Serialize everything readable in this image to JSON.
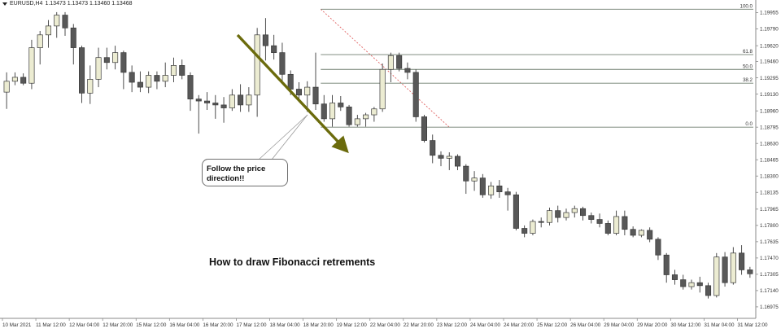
{
  "header": {
    "symbol": "EURUSD,H4",
    "ohlc": "1.13473 1.13473 1.13460 1.13468"
  },
  "annotation": {
    "callout_line1": "Follow the price",
    "callout_line2": "direction!!",
    "title": "How to draw Fibonacci retrements"
  },
  "colors": {
    "bull_candle": "#ececd2",
    "bear_candle": "#585858",
    "arrow": "#6b6b0c",
    "fib_line": "#6f7d6f",
    "fib_diagonal": "#e06060"
  },
  "chart_data": {
    "type": "candlestick",
    "symbol": "EURUSD",
    "timeframe": "H4",
    "ylim": [
      1.169,
      1.2005
    ],
    "y_ticks": [
      "1.19955",
      "1.19790",
      "1.19620",
      "1.19460",
      "1.19295",
      "1.19130",
      "1.18960",
      "1.18795",
      "1.18630",
      "1.18465",
      "1.18300",
      "1.18135",
      "1.17965",
      "1.17800",
      "1.17635",
      "1.17470",
      "1.17305",
      "1.17140",
      "1.16975"
    ],
    "x_ticks": [
      "10 Mar 2021",
      "11 Mar 12:00",
      "12 Mar 04:00",
      "12 Mar 20:00",
      "15 Mar 12:00",
      "16 Mar 04:00",
      "16 Mar 20:00",
      "17 Mar 12:00",
      "18 Mar 04:00",
      "18 Mar 20:00",
      "19 Mar 12:00",
      "22 Mar 04:00",
      "22 Mar 20:00",
      "23 Mar 12:00",
      "24 Mar 04:00",
      "24 Mar 20:00",
      "25 Mar 12:00",
      "26 Mar 04:00",
      "29 Mar 04:00",
      "29 Mar 20:00",
      "30 Mar 12:00",
      "31 Mar 04:00",
      "31 Mar 12:00"
    ],
    "fibonacci": {
      "high": 1.1999,
      "low": 1.18795,
      "levels": [
        {
          "label": "100.0",
          "price": 1.1999
        },
        {
          "label": "61.8",
          "price": 1.1953
        },
        {
          "label": "50.0",
          "price": 1.1938
        },
        {
          "label": "38.2",
          "price": 1.1924
        },
        {
          "label": "0.0",
          "price": 1.18795
        }
      ]
    },
    "candles": [
      [
        1.1915,
        1.1935,
        1.1898,
        1.1926
      ],
      [
        1.1926,
        1.1935,
        1.1922,
        1.193
      ],
      [
        1.193,
        1.1934,
        1.1922,
        1.1924
      ],
      [
        1.1924,
        1.1968,
        1.1918,
        1.196
      ],
      [
        1.196,
        1.1977,
        1.1943,
        1.1973
      ],
      [
        1.1973,
        1.1988,
        1.196,
        1.1982
      ],
      [
        1.1982,
        1.1996,
        1.197,
        1.1993
      ],
      [
        1.1993,
        1.1996,
        1.1972,
        1.198
      ],
      [
        1.198,
        1.1984,
        1.1943,
        1.196
      ],
      [
        1.196,
        1.1962,
        1.1904,
        1.1914
      ],
      [
        1.1914,
        1.1942,
        1.1903,
        1.1928
      ],
      [
        1.1928,
        1.196,
        1.192,
        1.195
      ],
      [
        1.195,
        1.196,
        1.1938,
        1.1945
      ],
      [
        1.1945,
        1.1962,
        1.1938,
        1.1955
      ],
      [
        1.1955,
        1.1957,
        1.1918,
        1.1935
      ],
      [
        1.1935,
        1.1942,
        1.1915,
        1.1925
      ],
      [
        1.1925,
        1.1936,
        1.1915,
        1.192
      ],
      [
        1.192,
        1.1936,
        1.1914,
        1.1932
      ],
      [
        1.1932,
        1.1936,
        1.1918,
        1.1926
      ],
      [
        1.1926,
        1.1945,
        1.192,
        1.1932
      ],
      [
        1.1932,
        1.195,
        1.1925,
        1.1942
      ],
      [
        1.1942,
        1.1948,
        1.1928,
        1.1932
      ],
      [
        1.1932,
        1.1935,
        1.1896,
        1.1908
      ],
      [
        1.1908,
        1.1912,
        1.1873,
        1.1906
      ],
      [
        1.1906,
        1.1915,
        1.1897,
        1.1904
      ],
      [
        1.1904,
        1.1912,
        1.1888,
        1.1902
      ],
      [
        1.1902,
        1.191,
        1.1884,
        1.1899
      ],
      [
        1.1899,
        1.1918,
        1.1896,
        1.1912
      ],
      [
        1.1912,
        1.1923,
        1.1895,
        1.1902
      ],
      [
        1.1902,
        1.192,
        1.1895,
        1.1912
      ],
      [
        1.1912,
        1.198,
        1.189,
        1.1973
      ],
      [
        1.1973,
        1.199,
        1.1947,
        1.1962
      ],
      [
        1.1962,
        1.1973,
        1.1948,
        1.1955
      ],
      [
        1.1955,
        1.1965,
        1.1925,
        1.1933
      ],
      [
        1.1933,
        1.1937,
        1.1912,
        1.1918
      ],
      [
        1.1918,
        1.1925,
        1.1906,
        1.1912
      ],
      [
        1.1912,
        1.1926,
        1.1895,
        1.192
      ],
      [
        1.192,
        1.1955,
        1.1897,
        1.1903
      ],
      [
        1.1903,
        1.1912,
        1.1885,
        1.1888
      ],
      [
        1.1888,
        1.1912,
        1.188,
        1.1904
      ],
      [
        1.1904,
        1.1911,
        1.1896,
        1.19
      ],
      [
        1.19,
        1.1902,
        1.188,
        1.1882
      ],
      [
        1.1882,
        1.1892,
        1.188,
        1.1888
      ],
      [
        1.1888,
        1.1894,
        1.188,
        1.1892
      ],
      [
        1.1892,
        1.19,
        1.1885,
        1.1898
      ],
      [
        1.1898,
        1.1944,
        1.1895,
        1.1938
      ],
      [
        1.1938,
        1.1955,
        1.1925,
        1.1952
      ],
      [
        1.1952,
        1.1955,
        1.1936,
        1.1939
      ],
      [
        1.1939,
        1.1945,
        1.1928,
        1.1935
      ],
      [
        1.1935,
        1.1938,
        1.1885,
        1.189
      ],
      [
        1.189,
        1.1892,
        1.1864,
        1.1866
      ],
      [
        1.1866,
        1.1872,
        1.1843,
        1.1851
      ],
      [
        1.1851,
        1.1855,
        1.184,
        1.1848
      ],
      [
        1.1848,
        1.1854,
        1.1836,
        1.185
      ],
      [
        1.185,
        1.1852,
        1.1836,
        1.184
      ],
      [
        1.184,
        1.1842,
        1.1812,
        1.1825
      ],
      [
        1.1825,
        1.1835,
        1.1815,
        1.1828
      ],
      [
        1.1828,
        1.1832,
        1.1808,
        1.1811
      ],
      [
        1.1811,
        1.1824,
        1.1807,
        1.182
      ],
      [
        1.182,
        1.1826,
        1.1808,
        1.1814
      ],
      [
        1.1814,
        1.1818,
        1.1795,
        1.1811
      ],
      [
        1.1811,
        1.1814,
        1.1775,
        1.1777
      ],
      [
        1.1777,
        1.178,
        1.1768,
        1.1772
      ],
      [
        1.1772,
        1.1786,
        1.177,
        1.1784
      ],
      [
        1.1784,
        1.1788,
        1.1778,
        1.1783
      ],
      [
        1.1783,
        1.1798,
        1.178,
        1.1795
      ],
      [
        1.1795,
        1.18,
        1.1783,
        1.1788
      ],
      [
        1.1788,
        1.1797,
        1.1785,
        1.1793
      ],
      [
        1.1793,
        1.18,
        1.1788,
        1.1797
      ],
      [
        1.1797,
        1.1799,
        1.1785,
        1.179
      ],
      [
        1.179,
        1.1793,
        1.1782,
        1.1786
      ],
      [
        1.1786,
        1.1792,
        1.1778,
        1.1782
      ],
      [
        1.1782,
        1.1785,
        1.177,
        1.1772
      ],
      [
        1.1772,
        1.1795,
        1.177,
        1.1789
      ],
      [
        1.1789,
        1.1795,
        1.177,
        1.1776
      ],
      [
        1.1776,
        1.1779,
        1.1768,
        1.177
      ],
      [
        1.177,
        1.1776,
        1.1768,
        1.1775
      ],
      [
        1.1775,
        1.1778,
        1.1763,
        1.1766
      ],
      [
        1.1766,
        1.1768,
        1.1745,
        1.175
      ],
      [
        1.175,
        1.1752,
        1.1722,
        1.173
      ],
      [
        1.173,
        1.1735,
        1.172,
        1.1725
      ],
      [
        1.1725,
        1.173,
        1.1715,
        1.1718
      ],
      [
        1.1718,
        1.1725,
        1.1715,
        1.1722
      ],
      [
        1.1722,
        1.1728,
        1.1712,
        1.1719
      ],
      [
        1.1719,
        1.1722,
        1.1706,
        1.1709
      ],
      [
        1.1709,
        1.1752,
        1.1707,
        1.1748
      ],
      [
        1.1748,
        1.1753,
        1.1718,
        1.1722
      ],
      [
        1.1722,
        1.1758,
        1.172,
        1.1752
      ],
      [
        1.1752,
        1.176,
        1.173,
        1.1735
      ],
      [
        1.1735,
        1.1738,
        1.1727,
        1.1731
      ]
    ]
  }
}
